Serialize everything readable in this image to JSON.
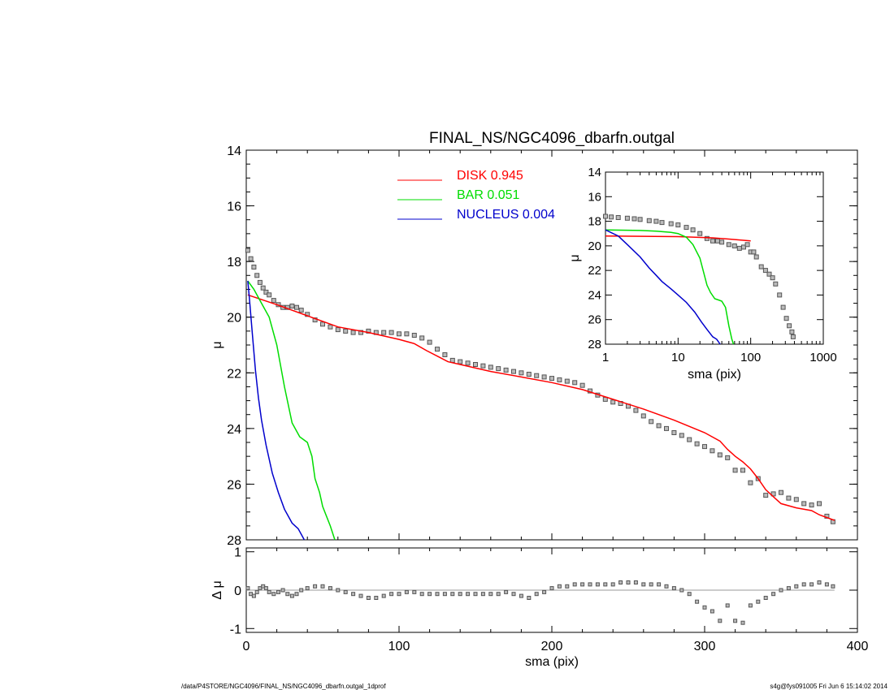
{
  "chart_data": [
    {
      "type": "scatter",
      "title": "FINAL_NS/NGC4096_dbarfn.outgal",
      "xlabel": "",
      "ylabel": "μ",
      "xlim": [
        0,
        400
      ],
      "ylim": [
        28,
        14
      ],
      "x_ticks": [
        "0",
        "100",
        "200",
        "300",
        "400"
      ],
      "y_ticks": [
        "14",
        "16",
        "18",
        "20",
        "22",
        "24",
        "26",
        "28"
      ],
      "legend": [
        {
          "name": "DISK",
          "value": "0.945",
          "color": "#ff0000"
        },
        {
          "name": "BAR",
          "value": "0.051",
          "color": "#00dd00"
        },
        {
          "name": "NUCLEUS",
          "value": "0.004",
          "color": "#0000cc"
        }
      ],
      "series": [
        {
          "name": "data",
          "kind": "points",
          "color": "#555555",
          "x": [
            1,
            3,
            5,
            7,
            9,
            11,
            13,
            15,
            18,
            21,
            24,
            27,
            30,
            33,
            36,
            40,
            45,
            50,
            55,
            60,
            65,
            70,
            75,
            80,
            85,
            90,
            95,
            100,
            105,
            110,
            115,
            120,
            125,
            130,
            135,
            140,
            145,
            150,
            155,
            160,
            165,
            170,
            175,
            180,
            185,
            190,
            195,
            200,
            205,
            210,
            215,
            220,
            225,
            230,
            235,
            240,
            245,
            250,
            255,
            260,
            265,
            270,
            275,
            280,
            285,
            290,
            295,
            300,
            305,
            310,
            315,
            320,
            325,
            330,
            335,
            340,
            345,
            350,
            355,
            360,
            365,
            370,
            375,
            380,
            384
          ],
          "y": [
            17.6,
            17.9,
            18.2,
            18.5,
            18.75,
            18.95,
            19.1,
            19.2,
            19.4,
            19.55,
            19.65,
            19.65,
            19.6,
            19.65,
            19.75,
            19.9,
            20.1,
            20.25,
            20.35,
            20.45,
            20.5,
            20.55,
            20.55,
            20.5,
            20.55,
            20.55,
            20.55,
            20.6,
            20.6,
            20.65,
            20.75,
            20.9,
            21.15,
            21.35,
            21.55,
            21.6,
            21.65,
            21.7,
            21.75,
            21.8,
            21.85,
            21.9,
            21.95,
            22.0,
            22.05,
            22.1,
            22.15,
            22.2,
            22.25,
            22.3,
            22.35,
            22.45,
            22.65,
            22.8,
            22.95,
            23.05,
            23.1,
            23.2,
            23.35,
            23.55,
            23.75,
            23.9,
            24.0,
            24.15,
            24.25,
            24.4,
            24.55,
            24.65,
            24.8,
            24.95,
            25.05,
            25.5,
            25.5,
            25.95,
            25.8,
            26.4,
            26.35,
            26.3,
            26.5,
            26.55,
            26.7,
            26.75,
            26.7,
            27.15,
            27.35
          ]
        },
        {
          "name": "DISK",
          "kind": "line",
          "color": "#ff0000",
          "x": [
            1,
            20,
            40,
            60,
            80,
            100,
            110,
            118,
            125,
            132,
            140,
            160,
            180,
            200,
            220,
            240,
            260,
            280,
            300,
            310,
            315,
            320,
            325,
            330,
            335,
            340,
            345,
            350,
            360,
            370,
            375,
            385
          ],
          "y": [
            19.2,
            19.55,
            19.95,
            20.35,
            20.55,
            20.8,
            20.95,
            21.2,
            21.4,
            21.6,
            21.7,
            21.95,
            22.15,
            22.35,
            22.6,
            22.95,
            23.3,
            23.7,
            24.15,
            24.45,
            24.75,
            25.0,
            25.2,
            25.45,
            25.8,
            26.2,
            26.45,
            26.7,
            26.85,
            26.95,
            27.1,
            27.3
          ]
        },
        {
          "name": "BAR",
          "kind": "line",
          "color": "#00dd00",
          "x": [
            1,
            5,
            10,
            15,
            20,
            25,
            30,
            35,
            40,
            43,
            45,
            48,
            50,
            55,
            58
          ],
          "y": [
            18.7,
            19.0,
            19.5,
            20.0,
            21.0,
            22.5,
            23.8,
            24.3,
            24.5,
            25.0,
            25.8,
            26.3,
            26.8,
            27.5,
            28.0
          ]
        },
        {
          "name": "NUCLEUS",
          "kind": "line",
          "color": "#0000cc",
          "x": [
            1,
            2,
            4,
            6,
            8,
            10,
            13,
            17,
            21,
            25,
            30,
            34,
            38
          ],
          "y": [
            18.7,
            19.3,
            20.6,
            21.9,
            22.9,
            23.7,
            24.6,
            25.6,
            26.3,
            26.9,
            27.4,
            27.6,
            28.0
          ]
        }
      ]
    },
    {
      "type": "scatter",
      "xlabel": "sma (pix)",
      "ylabel": "Δ μ",
      "xlim": [
        0,
        400
      ],
      "ylim": [
        -1.1,
        1.1
      ],
      "x_ticks": [
        "0",
        "100",
        "200",
        "300",
        "400"
      ],
      "y_ticks": [
        "1",
        "0",
        "-1"
      ],
      "series": [
        {
          "name": "residual",
          "kind": "points",
          "color": "#555555",
          "x": [
            1,
            3,
            5,
            7,
            9,
            11,
            13,
            15,
            18,
            21,
            24,
            27,
            30,
            33,
            36,
            40,
            45,
            50,
            55,
            60,
            65,
            70,
            75,
            80,
            85,
            90,
            95,
            100,
            105,
            110,
            115,
            120,
            125,
            130,
            135,
            140,
            145,
            150,
            155,
            160,
            165,
            170,
            175,
            180,
            185,
            190,
            195,
            200,
            205,
            210,
            215,
            220,
            225,
            230,
            235,
            240,
            245,
            250,
            255,
            260,
            265,
            270,
            275,
            280,
            285,
            290,
            295,
            300,
            305,
            310,
            315,
            320,
            325,
            330,
            335,
            340,
            345,
            350,
            355,
            360,
            365,
            370,
            375,
            380,
            384
          ],
          "y": [
            0.05,
            -0.1,
            -0.15,
            -0.05,
            0.05,
            0.1,
            0.05,
            -0.05,
            -0.1,
            -0.05,
            0.0,
            -0.1,
            -0.15,
            -0.1,
            0.0,
            0.05,
            0.1,
            0.1,
            0.05,
            0.0,
            -0.05,
            -0.1,
            -0.15,
            -0.2,
            -0.2,
            -0.15,
            -0.1,
            -0.1,
            -0.05,
            -0.05,
            -0.1,
            -0.1,
            -0.1,
            -0.1,
            -0.1,
            -0.1,
            -0.1,
            -0.1,
            -0.1,
            -0.1,
            -0.1,
            -0.05,
            -0.1,
            -0.15,
            -0.2,
            -0.1,
            -0.05,
            0.05,
            0.1,
            0.1,
            0.15,
            0.15,
            0.15,
            0.15,
            0.15,
            0.15,
            0.2,
            0.2,
            0.2,
            0.15,
            0.15,
            0.15,
            0.1,
            0.05,
            0.0,
            -0.1,
            -0.3,
            -0.45,
            -0.55,
            -0.8,
            -0.4,
            -0.8,
            -0.85,
            -0.4,
            -0.3,
            -0.2,
            -0.1,
            0.0,
            0.05,
            0.1,
            0.15,
            0.15,
            0.2,
            0.15,
            0.1
          ]
        }
      ]
    },
    {
      "type": "scatter",
      "xlabel": "sma (pix)",
      "ylabel": "μ",
      "xscale": "log",
      "xlim": [
        1,
        1000
      ],
      "ylim": [
        28,
        14
      ],
      "x_ticks": [
        "1",
        "10",
        "100",
        "1000"
      ],
      "y_ticks": [
        "14",
        "16",
        "18",
        "20",
        "22",
        "24",
        "26",
        "28"
      ],
      "series": [
        {
          "name": "data",
          "kind": "points",
          "color": "#555555",
          "x": [
            1.0,
            1.2,
            1.5,
            2,
            2.5,
            3,
            4,
            5,
            6,
            8,
            10,
            13,
            16,
            20,
            25,
            30,
            35,
            40,
            50,
            60,
            70,
            80,
            90,
            100,
            110,
            120,
            140,
            160,
            180,
            200,
            220,
            250,
            280,
            310,
            340,
            370,
            384
          ],
          "y": [
            17.6,
            17.65,
            17.7,
            17.75,
            17.8,
            17.85,
            17.95,
            18.0,
            18.1,
            18.2,
            18.3,
            18.5,
            18.7,
            19.0,
            19.4,
            19.6,
            19.6,
            19.7,
            19.9,
            20.0,
            20.2,
            20.1,
            19.9,
            20.5,
            20.5,
            20.9,
            21.7,
            22.0,
            22.3,
            22.6,
            23.1,
            24.0,
            25.0,
            25.9,
            26.5,
            27.0,
            27.4
          ]
        },
        {
          "name": "DISK",
          "kind": "line",
          "color": "#ff0000",
          "x": [
            1,
            10,
            30,
            50,
            100
          ],
          "y": [
            19.2,
            19.25,
            19.35,
            19.45,
            19.6
          ]
        },
        {
          "name": "BAR",
          "kind": "line",
          "color": "#00dd00",
          "x": [
            1,
            3,
            5,
            8,
            10,
            13,
            16,
            20,
            25,
            28,
            32,
            36,
            40,
            45,
            50,
            55,
            58
          ],
          "y": [
            18.7,
            18.75,
            18.8,
            18.9,
            19.0,
            19.3,
            19.9,
            21.0,
            23.2,
            23.8,
            24.3,
            24.4,
            24.5,
            25.0,
            26.5,
            27.6,
            28.0
          ]
        },
        {
          "name": "NUCLEUS",
          "kind": "line",
          "color": "#0000cc",
          "x": [
            1,
            1.5,
            2,
            3,
            4,
            5,
            6,
            8,
            10,
            13,
            17,
            21,
            25,
            30,
            34,
            38
          ],
          "y": [
            18.7,
            19.2,
            19.9,
            20.9,
            21.8,
            22.4,
            22.9,
            23.5,
            24.0,
            24.6,
            25.4,
            26.2,
            26.8,
            27.4,
            27.6,
            28.0
          ]
        }
      ]
    }
  ],
  "footer": {
    "left": "/data/P4STORE/NGC4096/FINAL_NS/NGC4096_dbarfn.outgal_1dprof",
    "right": "s4g@fys091005  Fri Jun  6 15:14:02 2014"
  }
}
